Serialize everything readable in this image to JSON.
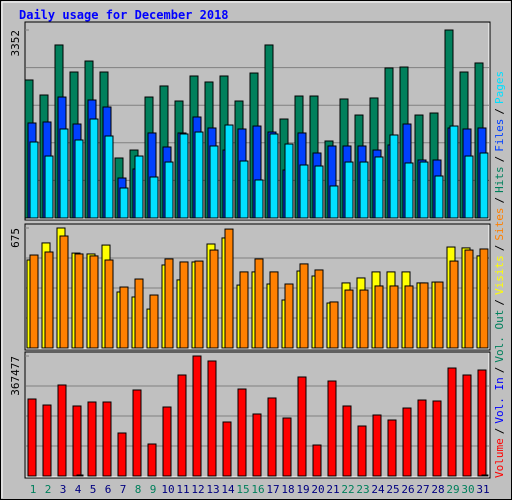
{
  "legend_separator": "/",
  "chart_data": [
    {
      "type": "bar",
      "title": "Daily usage for December 2018",
      "ylim": [
        0,
        3352
      ],
      "yticks": [
        3352
      ],
      "series": [
        {
          "name": "Hits",
          "color": "#00805c",
          "values": [
            2461,
            2193,
            3085,
            2603,
            2799,
            2603,
            1070,
            1212,
            2157,
            2354,
            2086,
            2532,
            2425,
            2532,
            2086,
            2585,
            3085,
            1765,
            2175,
            2175,
            1373,
            2122,
            1836,
            2140,
            2675,
            2692,
            1836,
            1872,
            3352,
            2603,
            2764
          ]
        },
        {
          "name": "Files",
          "color": "#0040ff",
          "values": [
            1694,
            1712,
            2157,
            1676,
            2104,
            1979,
            713,
            874,
            1516,
            1266,
            1516,
            1801,
            1605,
            1212,
            1587,
            1640,
            1533,
            856,
            1516,
            1159,
            1284,
            1284,
            1284,
            1212,
            1302,
            1676,
            1034,
            1034,
            1605,
            1587,
            1605
          ]
        },
        {
          "name": "Pages",
          "color": "#00e0ff",
          "values": [
            1355,
            1105,
            1587,
            1391,
            1765,
            1462,
            535,
            1105,
            731,
            998,
            1498,
            1533,
            1284,
            1658,
            1016,
            678,
            1498,
            1319,
            945,
            927,
            571,
            998,
            998,
            1088,
            1480,
            981,
            998,
            749,
            1640,
            1105,
            1159
          ]
        }
      ]
    },
    {
      "type": "bar",
      "ylim": [
        0,
        675
      ],
      "yticks": [
        675
      ],
      "series": [
        {
          "name": "Visits",
          "color": "#ffff00",
          "values": [
            495,
            591,
            675,
            534,
            529,
            579,
            315,
            287,
            219,
            467,
            383,
            484,
            585,
            619,
            354,
            428,
            360,
            270,
            433,
            405,
            253,
            366,
            394,
            428,
            428,
            428,
            366,
            371,
            568,
            563,
            518
          ]
        },
        {
          "name": "Sites",
          "color": "#ff8000",
          "values": [
            523,
            540,
            630,
            529,
            518,
            495,
            343,
            388,
            298,
            501,
            484,
            489,
            551,
            669,
            428,
            501,
            428,
            360,
            473,
            439,
            259,
            326,
            326,
            349,
            349,
            349,
            366,
            371,
            489,
            551,
            557
          ]
        }
      ]
    },
    {
      "type": "bar",
      "ylim": [
        0,
        367477
      ],
      "yticks": [
        367477
      ],
      "categories": [
        "1",
        "2",
        "3",
        "4",
        "5",
        "6",
        "7",
        "8",
        "9",
        "10",
        "11",
        "12",
        "13",
        "14",
        "15",
        "16",
        "17",
        "18",
        "19",
        "20",
        "21",
        "22",
        "23",
        "24",
        "25",
        "26",
        "27",
        "28",
        "29",
        "30",
        "31"
      ],
      "category_colors": [
        "#00805c",
        "#00805c",
        "#000080",
        "#000080",
        "#000080",
        "#000080",
        "#000080",
        "#00805c",
        "#00805c",
        "#000080",
        "#000080",
        "#000080",
        "#000080",
        "#000080",
        "#00805c",
        "#00805c",
        "#000080",
        "#000080",
        "#000080",
        "#000080",
        "#000080",
        "#00805c",
        "#00805c",
        "#000080",
        "#000080",
        "#000080",
        "#000080",
        "#000080",
        "#00805c",
        "#00805c",
        "#000080"
      ],
      "series": [
        {
          "name": "Volume",
          "color": "#ff0000",
          "values": [
            235800,
            217400,
            278700,
            214400,
            226600,
            226600,
            131700,
            263400,
            98000,
            211300,
            309300,
            367477,
            352200,
            165400,
            266400,
            189900,
            238900,
            177600,
            303200,
            94900,
            290900,
            214400,
            153100,
            186800,
            171500,
            208200,
            232700,
            229700,
            330700,
            309300,
            324600
          ]
        },
        {
          "name": "Vol. In",
          "color": "#0000ff",
          "values": [
            0,
            0,
            0,
            3000,
            0,
            0,
            0,
            0,
            0,
            0,
            0,
            0,
            0,
            0,
            0,
            0,
            0,
            0,
            0,
            0,
            0,
            0,
            0,
            0,
            0,
            0,
            0,
            0,
            0,
            0,
            3000
          ]
        },
        {
          "name": "Vol. Out",
          "color": "#00805c",
          "values": [
            0,
            0,
            0,
            0,
            0,
            0,
            0,
            0,
            0,
            0,
            0,
            0,
            0,
            0,
            0,
            0,
            0,
            0,
            0,
            0,
            0,
            0,
            0,
            0,
            0,
            0,
            0,
            0,
            0,
            0,
            0
          ]
        }
      ]
    }
  ]
}
